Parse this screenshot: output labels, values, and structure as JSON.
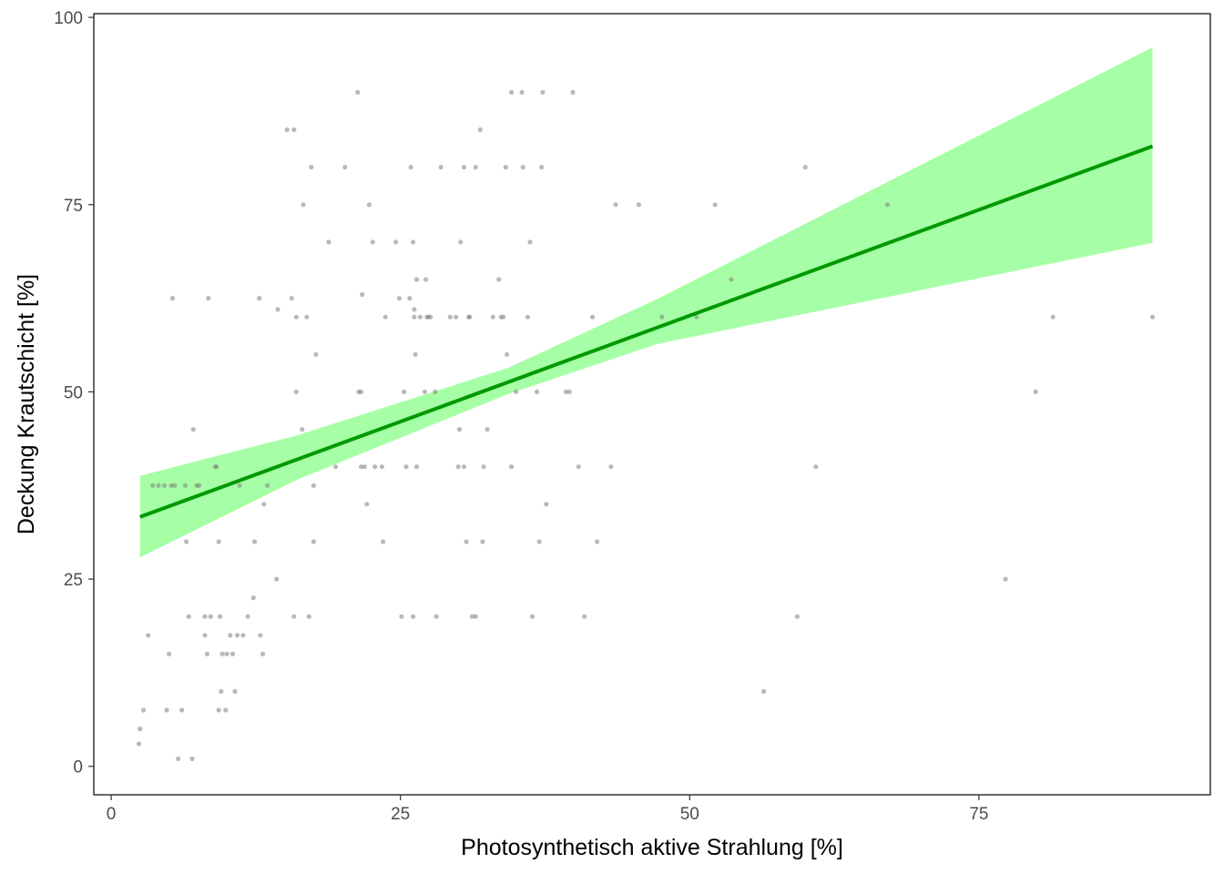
{
  "chart_data": {
    "type": "scatter",
    "title": "",
    "xlabel": "Photosynthetisch aktive Strahlung [%]",
    "ylabel": "Deckung Krautschicht [%]",
    "xlim": [
      -1.5,
      95
    ],
    "ylim": [
      -3.8,
      100.5
    ],
    "x_ticks": [
      "0",
      "25",
      "50",
      "75"
    ],
    "x_tick_values": [
      0,
      25,
      50,
      75
    ],
    "y_ticks": [
      "0",
      "25",
      "50",
      "75",
      "100"
    ],
    "y_tick_values": [
      0,
      25,
      50,
      75,
      100
    ],
    "grid": false,
    "legend": "none",
    "colors": {
      "points": "#808080",
      "fit_line": "#009900",
      "confidence_band": "#A6FFA6"
    },
    "series": [
      {
        "type": "scatter",
        "points": [
          [
            2.4,
            3
          ],
          [
            2.5,
            5
          ],
          [
            2.8,
            7.5
          ],
          [
            3.2,
            17.5
          ],
          [
            3.6,
            37.5
          ],
          [
            4.1,
            37.5
          ],
          [
            4.6,
            37.5
          ],
          [
            4.8,
            7.5
          ],
          [
            5,
            15
          ],
          [
            5.2,
            37.5
          ],
          [
            5.3,
            62.5
          ],
          [
            5.5,
            37.5
          ],
          [
            5.8,
            1
          ],
          [
            6.1,
            7.5
          ],
          [
            6.4,
            37.5
          ],
          [
            6.5,
            30
          ],
          [
            6.7,
            20
          ],
          [
            7,
            1
          ],
          [
            7.1,
            45
          ],
          [
            7.4,
            37.5
          ],
          [
            7.6,
            37.5
          ],
          [
            8.1,
            20
          ],
          [
            8.1,
            17.5
          ],
          [
            8.3,
            15
          ],
          [
            8.4,
            62.5
          ],
          [
            8.6,
            20
          ],
          [
            9,
            40
          ],
          [
            9.1,
            40
          ],
          [
            9.3,
            30
          ],
          [
            9.3,
            7.5
          ],
          [
            9.4,
            20
          ],
          [
            9.5,
            10
          ],
          [
            9.6,
            15
          ],
          [
            9.9,
            7.5
          ],
          [
            10,
            15
          ],
          [
            10.3,
            17.5
          ],
          [
            10.5,
            15
          ],
          [
            10.7,
            10
          ],
          [
            10.9,
            17.5
          ],
          [
            11.1,
            37.5
          ],
          [
            11.4,
            17.5
          ],
          [
            11.8,
            20
          ],
          [
            12.3,
            22.5
          ],
          [
            12.4,
            30
          ],
          [
            12.8,
            62.5
          ],
          [
            12.9,
            17.5
          ],
          [
            13.1,
            15
          ],
          [
            13.2,
            35
          ],
          [
            13.5,
            37.5
          ],
          [
            14.3,
            25
          ],
          [
            14.4,
            61
          ],
          [
            15.2,
            85
          ],
          [
            15.6,
            62.5
          ],
          [
            15.8,
            20
          ],
          [
            15.8,
            85
          ],
          [
            16,
            50
          ],
          [
            16,
            60
          ],
          [
            16.5,
            45
          ],
          [
            16.6,
            75
          ],
          [
            16.9,
            60
          ],
          [
            17.1,
            20
          ],
          [
            17.3,
            80
          ],
          [
            17.5,
            37.5
          ],
          [
            17.5,
            30
          ],
          [
            17.7,
            55
          ],
          [
            18.8,
            70
          ],
          [
            19.4,
            40
          ],
          [
            20.2,
            80
          ],
          [
            21.3,
            90
          ],
          [
            21.4,
            50
          ],
          [
            21.6,
            50
          ],
          [
            21.6,
            40
          ],
          [
            21.7,
            63
          ],
          [
            21.9,
            40
          ],
          [
            22.1,
            35
          ],
          [
            22.3,
            75
          ],
          [
            22.6,
            70
          ],
          [
            22.8,
            40
          ],
          [
            23.4,
            40
          ],
          [
            23.5,
            30
          ],
          [
            23.7,
            60
          ],
          [
            24.6,
            70
          ],
          [
            24.9,
            62.5
          ],
          [
            25.1,
            20
          ],
          [
            25.3,
            50
          ],
          [
            25.5,
            40
          ],
          [
            25.8,
            62.5
          ],
          [
            25.9,
            80
          ],
          [
            26.1,
            20
          ],
          [
            26.1,
            70
          ],
          [
            26.2,
            60
          ],
          [
            26.2,
            61
          ],
          [
            26.3,
            55
          ],
          [
            26.4,
            40
          ],
          [
            26.4,
            65
          ],
          [
            26.7,
            60
          ],
          [
            27.1,
            50
          ],
          [
            27.2,
            65
          ],
          [
            27.3,
            60
          ],
          [
            27.4,
            60
          ],
          [
            27.6,
            60
          ],
          [
            28,
            50
          ],
          [
            28.1,
            20
          ],
          [
            28.5,
            80
          ],
          [
            29.3,
            60
          ],
          [
            29.8,
            60
          ],
          [
            30,
            40
          ],
          [
            30.1,
            45
          ],
          [
            30.2,
            70
          ],
          [
            30.5,
            80
          ],
          [
            30.5,
            40
          ],
          [
            30.7,
            30
          ],
          [
            30.9,
            60
          ],
          [
            31,
            60
          ],
          [
            31.2,
            20
          ],
          [
            31.5,
            20
          ],
          [
            31.5,
            80
          ],
          [
            31.9,
            85
          ],
          [
            32.1,
            30
          ],
          [
            32.2,
            40
          ],
          [
            32.5,
            45
          ],
          [
            33,
            60
          ],
          [
            33.5,
            65
          ],
          [
            33.7,
            60
          ],
          [
            33.9,
            60
          ],
          [
            34.1,
            80
          ],
          [
            34.2,
            55
          ],
          [
            34.6,
            90
          ],
          [
            34.6,
            40
          ],
          [
            35,
            50
          ],
          [
            35.5,
            90
          ],
          [
            35.6,
            80
          ],
          [
            36,
            60
          ],
          [
            36.2,
            70
          ],
          [
            36.4,
            20
          ],
          [
            36.8,
            50
          ],
          [
            37,
            30
          ],
          [
            37.2,
            80
          ],
          [
            37.3,
            90
          ],
          [
            37.6,
            35
          ],
          [
            39.3,
            50
          ],
          [
            39.6,
            50
          ],
          [
            39.9,
            90
          ],
          [
            40.4,
            40
          ],
          [
            40.9,
            20
          ],
          [
            41.6,
            60
          ],
          [
            42,
            30
          ],
          [
            43.2,
            40
          ],
          [
            43.6,
            75
          ],
          [
            45.6,
            75
          ],
          [
            47.6,
            60
          ],
          [
            50.6,
            60
          ],
          [
            52.2,
            75
          ],
          [
            53.6,
            65
          ],
          [
            56.4,
            10
          ],
          [
            59.3,
            20
          ],
          [
            60,
            80
          ],
          [
            60.9,
            40
          ],
          [
            67.1,
            75
          ],
          [
            77.3,
            25
          ],
          [
            79.9,
            50
          ],
          [
            81.4,
            60
          ],
          [
            90,
            60
          ]
        ]
      },
      {
        "type": "line",
        "x": [
          2.5,
          90
        ],
        "y": [
          33.3,
          82.8
        ]
      },
      {
        "type": "area",
        "x": [
          2.5,
          16.1,
          34.3,
          47.2,
          90
        ],
        "upper": [
          38.8,
          44.2,
          53.2,
          62.4,
          96
        ],
        "lower": [
          27.9,
          38.3,
          49.7,
          56.4,
          69.9
        ]
      }
    ]
  }
}
